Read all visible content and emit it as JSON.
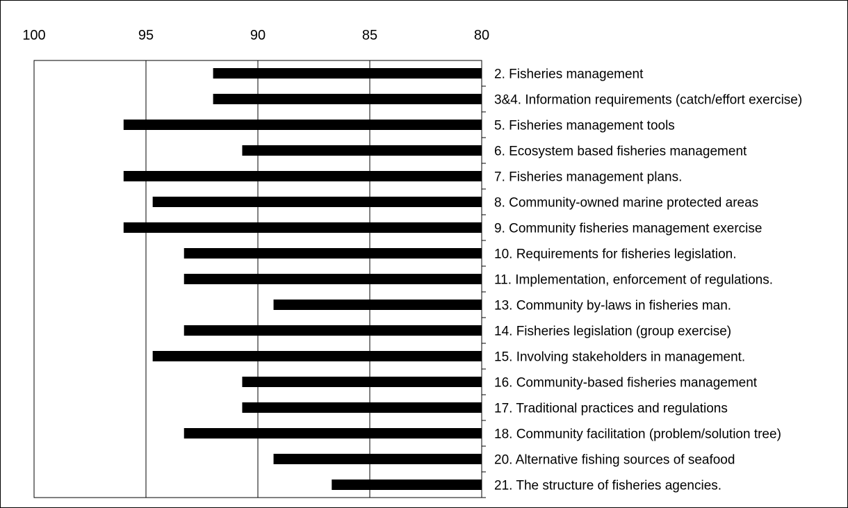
{
  "chart_data": {
    "type": "bar",
    "orientation": "horizontal",
    "title": "",
    "xlabel": "",
    "ylabel": "",
    "x_axis": {
      "reversed": true,
      "range": [
        100,
        80
      ],
      "ticks": [
        "100",
        "95",
        "90",
        "85",
        "80"
      ],
      "tick_position": "top"
    },
    "grid": {
      "vertical": true,
      "horizontal": false
    },
    "legend": "none",
    "bar_color": "#000000",
    "categories": [
      "2. Fisheries management",
      "3&4. Information requirements (catch/effort exercise)",
      "5. Fisheries management tools",
      "6. Ecosystem based fisheries management",
      "7. Fisheries management plans.",
      "8. Community-owned marine protected areas",
      "9. Community fisheries management exercise",
      "10. Requirements for fisheries legislation.",
      "11. Implementation, enforcement of regulations.",
      "13. Community by-laws in fisheries man.",
      "14. Fisheries legislation (group exercise)",
      "15. Involving stakeholders in management.",
      "16. Community-based fisheries management",
      "17. Traditional practices and regulations",
      "18. Community facilitation (problem/solution tree)",
      "20. Alternative fishing sources of seafood",
      "21. The structure of fisheries agencies."
    ],
    "values": [
      92,
      92,
      96,
      90.7,
      96,
      94.7,
      96,
      93.3,
      93.3,
      89.3,
      93.3,
      94.7,
      90.7,
      90.7,
      93.3,
      89.3,
      86.7
    ]
  }
}
